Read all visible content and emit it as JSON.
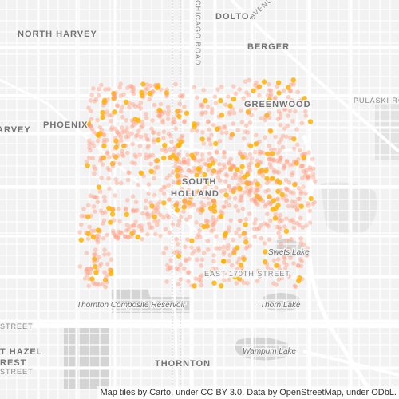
{
  "map": {
    "labels": {
      "north_harvey": "NORTH HARVEY",
      "dolton": "DOLTON",
      "berger": "BERGER",
      "greenwood": "GREENWOOD",
      "pulaski_road": "PULASKI RO",
      "harvey": "ARVEY",
      "phoenix": "PHOENIX",
      "south_holland_1": "SOUTH",
      "south_holland_2": "HOLLAND",
      "sweets_lake": "Swets Lake",
      "east_170th": "EAST 170TH STREET",
      "thornton_reservoir": "Thornton Composite Reservoir",
      "thorn_lake": "Thorn Lake",
      "street_left": "STREET",
      "east_hazel": "T HAZEL",
      "crest": "REST",
      "street_bottom": "STREET",
      "wampum_lake": "Wampum Lake",
      "thornton": "THORNTON",
      "chicago_road": "CHICAGO ROAD",
      "avenue": "AVENUE"
    },
    "attribution": "Map tiles by Carto, under CC BY 3.0. Data by OpenStreetMap, under ODbL.",
    "colors": {
      "background": "#f2f2f2",
      "road": "#ffffff",
      "water": "#d4d4d4",
      "park": "#e3e3e3",
      "point_hot": "#ffb300",
      "point_cool": "#ff9e80"
    }
  }
}
